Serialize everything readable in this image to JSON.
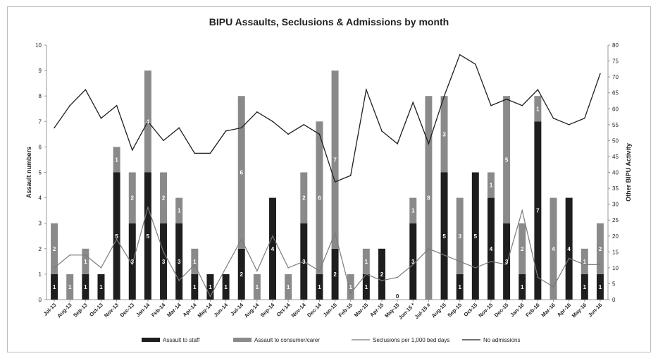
{
  "chart_data": {
    "type": "bar",
    "title": "BIPU Assaults, Seclusions & Admissions by month",
    "ylabel": "Assault numbers",
    "y2label": "Other BIPU Activity",
    "ylim": [
      0,
      10
    ],
    "y2lim": [
      0,
      80
    ],
    "yticks": [
      "0",
      "1",
      "2",
      "3",
      "4",
      "5",
      "6",
      "7",
      "8",
      "9",
      "10"
    ],
    "y2ticks": [
      "0",
      "5",
      "10",
      "15",
      "20",
      "25",
      "30",
      "35",
      "40",
      "45",
      "50",
      "55",
      "60",
      "65",
      "70",
      "75",
      "80"
    ],
    "categories": [
      "Jul-13",
      "Aug-13",
      "Sep-13",
      "Oct-13",
      "Nov-13",
      "Dec-13",
      "Jan-14",
      "Feb-14",
      "Mar-14",
      "Apr-14",
      "May-14",
      "Jun-14",
      "Jul-14",
      "Aug-14",
      "Sep-14",
      "Oct-14",
      "Nov-14",
      "Dec-14",
      "Jan-15",
      "Feb-15",
      "Mar-15",
      "Apr-15",
      "May-15",
      "Jun-15 *",
      "Jul-15 #",
      "Aug-15",
      "Sep-15",
      "Oct-15",
      "Nov-15",
      "Dec-15",
      "Jan-16",
      "Feb-16",
      "Mar-16",
      "Apr-16",
      "May-16",
      "Jun-16"
    ],
    "series": [
      {
        "name": "Assault to staff",
        "type": "bar",
        "stack": "assaults",
        "color": "#1e1e1e",
        "values": [
          1,
          0,
          1,
          1,
          5,
          3,
          5,
          3,
          3,
          1,
          1,
          1,
          2,
          0,
          4,
          0,
          3,
          1,
          2,
          0,
          1,
          2,
          0,
          3,
          0,
          5,
          1,
          5,
          4,
          3,
          1,
          7,
          0,
          4,
          1,
          1
        ]
      },
      {
        "name": "Assault to consumer/carer",
        "type": "bar",
        "stack": "assaults",
        "color": "#8a8a8a",
        "values": [
          2,
          1,
          1,
          0,
          1,
          2,
          4,
          2,
          1,
          1,
          0,
          0,
          6,
          1,
          0,
          1,
          2,
          6,
          7,
          1,
          1,
          0,
          0,
          1,
          8,
          3,
          3,
          0,
          1,
          5,
          2,
          1,
          4,
          0,
          1,
          2
        ]
      },
      {
        "name": "Seclusions per 1,000 bed days",
        "type": "line",
        "axis": "right",
        "color": "#7a7a7a",
        "values": [
          10,
          14,
          14,
          10,
          19,
          11,
          29,
          15,
          6,
          11,
          1,
          10,
          19,
          9,
          20,
          10,
          12,
          9,
          21,
          2,
          8,
          6,
          7,
          11,
          16,
          14,
          12,
          10,
          12,
          11,
          28,
          7,
          4,
          13,
          11,
          11
        ]
      },
      {
        "name": "No admissions",
        "type": "line",
        "axis": "right",
        "color": "#1e1e1e",
        "values": [
          54,
          61,
          66,
          57,
          61,
          47,
          56,
          50,
          54,
          46,
          46,
          53,
          54,
          59,
          56,
          52,
          55,
          52,
          37,
          39,
          66,
          53,
          49,
          62,
          49,
          64,
          77,
          74,
          61,
          63,
          61,
          66,
          57,
          55,
          57,
          71
        ]
      }
    ],
    "data_labels": {
      "staff": [
        "1",
        "",
        "1",
        "1",
        "5",
        "3",
        "5",
        "3",
        "3",
        "1",
        "1",
        "1",
        "2",
        "",
        "4",
        "",
        "3",
        "1",
        "2",
        "",
        "1",
        "2",
        "0",
        "3",
        "",
        "5",
        "1",
        "5",
        "4",
        "3",
        "1",
        "7",
        "",
        "4",
        "1",
        "1"
      ],
      "consumer": [
        "2",
        "1",
        "1",
        "",
        "1",
        "2",
        "4",
        "2",
        "1",
        "1",
        "",
        "",
        "6",
        "1",
        "",
        "1",
        "2",
        "6",
        "7",
        "1",
        "1",
        "",
        "",
        "1",
        "8",
        "3",
        "3",
        "",
        "1",
        "5",
        "2",
        "1",
        "4",
        "",
        "1",
        "2"
      ]
    },
    "legend": [
      "Assault to staff",
      "Assault to consumer/carer",
      "Seclusions per 1,000 bed days",
      "No admissions"
    ],
    "legend_position": "bottom",
    "grid": false
  }
}
